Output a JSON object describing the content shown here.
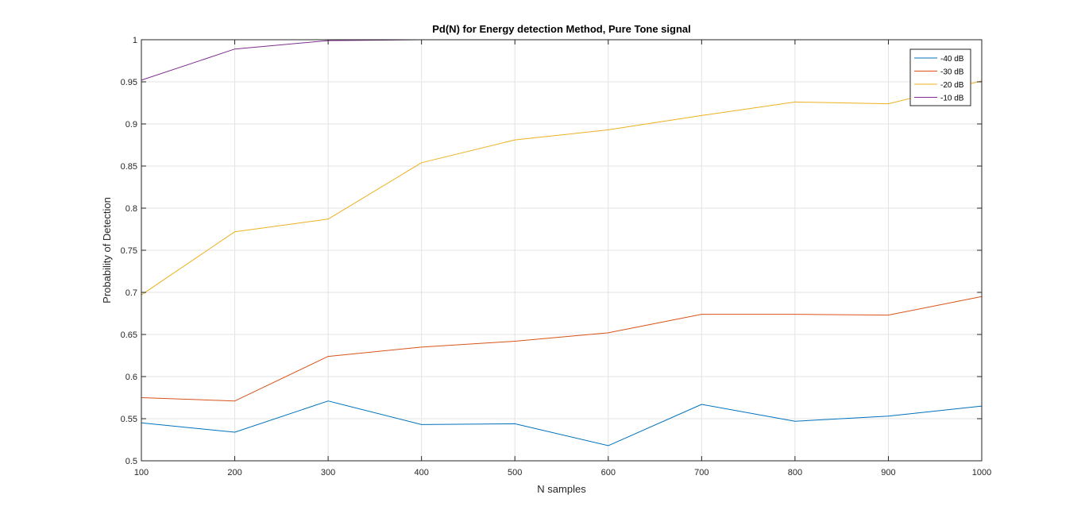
{
  "chart_data": {
    "type": "line",
    "title": "Pd(N) for Energy detection Method, Pure Tone signal",
    "xlabel": "N samples",
    "ylabel": "Probability of Detection",
    "x": [
      100,
      200,
      300,
      400,
      500,
      600,
      700,
      800,
      900,
      1000
    ],
    "xlim": [
      100,
      1000
    ],
    "ylim": [
      0.5,
      1
    ],
    "xticks": [
      100,
      200,
      300,
      400,
      500,
      600,
      700,
      800,
      900,
      1000
    ],
    "xtick_labels": [
      "100",
      "200",
      "300",
      "400",
      "500",
      "600",
      "700",
      "800",
      "900",
      "1000"
    ],
    "yticks": [
      0.5,
      0.55,
      0.6,
      0.65,
      0.7,
      0.75,
      0.8,
      0.85,
      0.9,
      0.95,
      1
    ],
    "ytick_labels": [
      "0.5",
      "0.55",
      "0.6",
      "0.65",
      "0.7",
      "0.75",
      "0.8",
      "0.85",
      "0.9",
      "0.95",
      "1"
    ],
    "grid": true,
    "legend_position": "top-right",
    "series": [
      {
        "name": "-40 dB",
        "color": "#0072BD",
        "values": [
          0.545,
          0.534,
          0.571,
          0.543,
          0.544,
          0.518,
          0.567,
          0.547,
          0.553,
          0.565
        ]
      },
      {
        "name": "-30 dB",
        "color": "#D95319",
        "values": [
          0.575,
          0.571,
          0.624,
          0.635,
          0.642,
          0.652,
          0.674,
          0.674,
          0.673,
          0.695
        ]
      },
      {
        "name": "-20 dB",
        "color": "#EDB120",
        "values": [
          0.697,
          0.772,
          0.787,
          0.854,
          0.881,
          0.893,
          0.91,
          0.926,
          0.924,
          0.951
        ]
      },
      {
        "name": "-10 dB",
        "color": "#7E2F8E",
        "values": [
          0.952,
          0.989,
          0.999,
          1.0,
          1.0,
          1.0,
          1.0,
          1.0,
          1.0,
          1.0
        ]
      }
    ]
  }
}
